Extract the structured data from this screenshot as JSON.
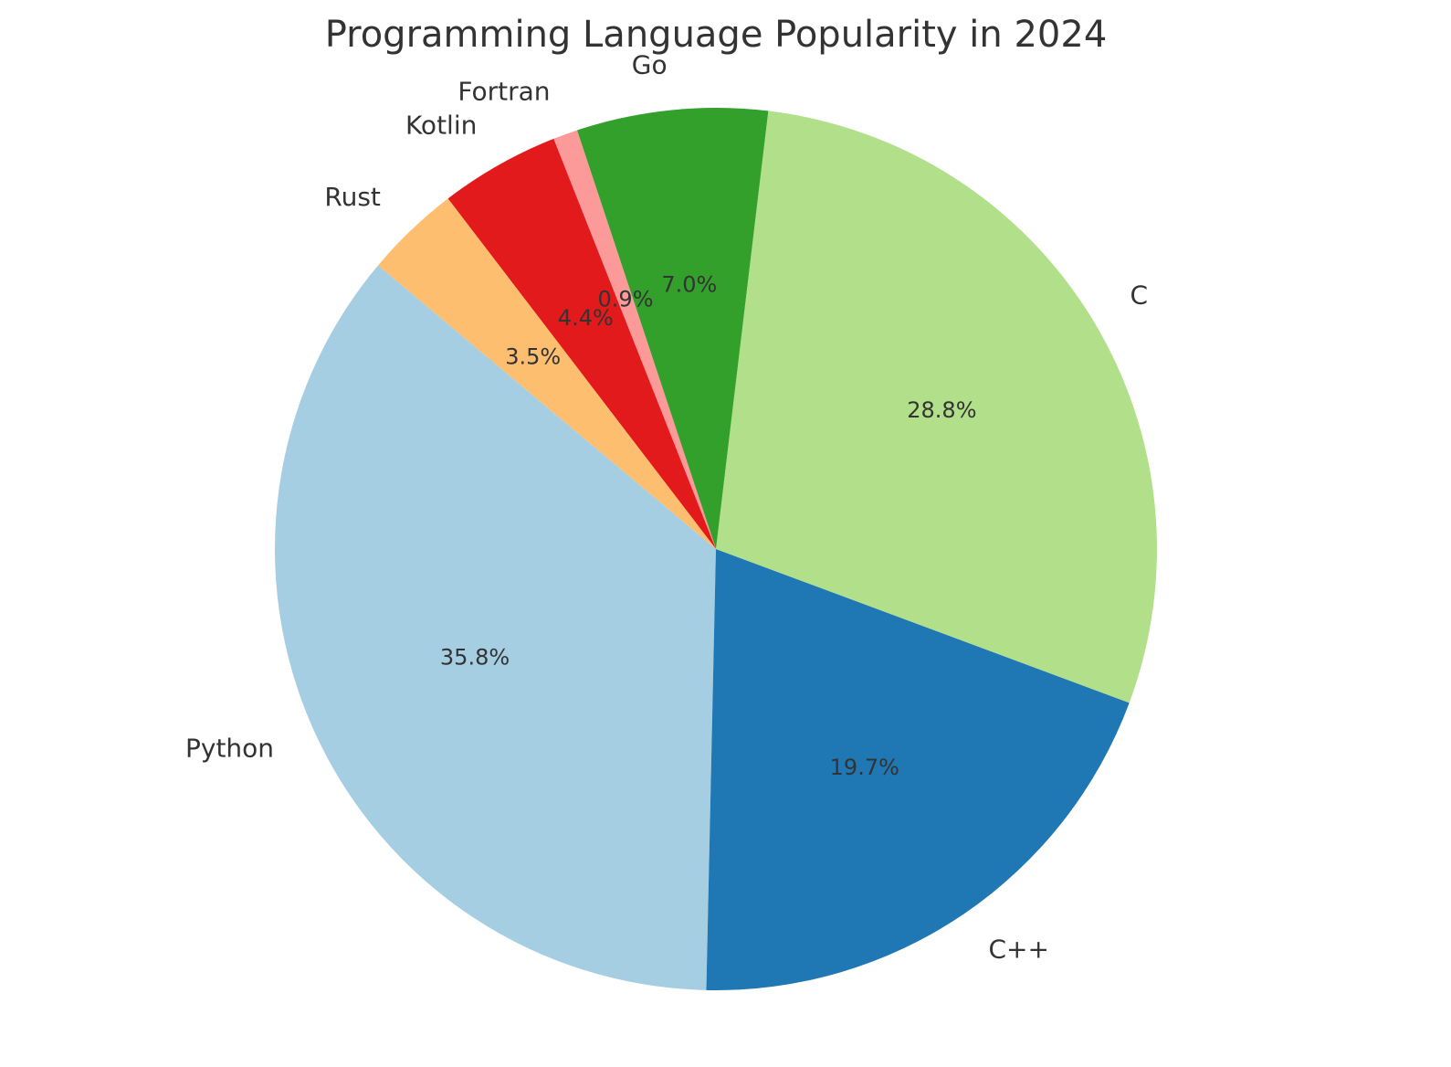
{
  "chart_data": {
    "type": "pie",
    "title": "Programming Language Popularity in 2024",
    "categories": [
      "Python",
      "C++",
      "C",
      "Go",
      "Fortran",
      "Kotlin",
      "Rust"
    ],
    "values": [
      35.8,
      19.7,
      28.8,
      7.0,
      0.9,
      4.4,
      3.5
    ],
    "value_labels": [
      "35.8%",
      "19.7%",
      "28.8%",
      "7.0%",
      "0.9%",
      "4.4%",
      "3.5%"
    ],
    "colors": [
      "#a6cee3",
      "#1f78b4",
      "#b2df8a",
      "#33a02c",
      "#fb9a99",
      "#e31a1c",
      "#fdbf6f"
    ]
  }
}
